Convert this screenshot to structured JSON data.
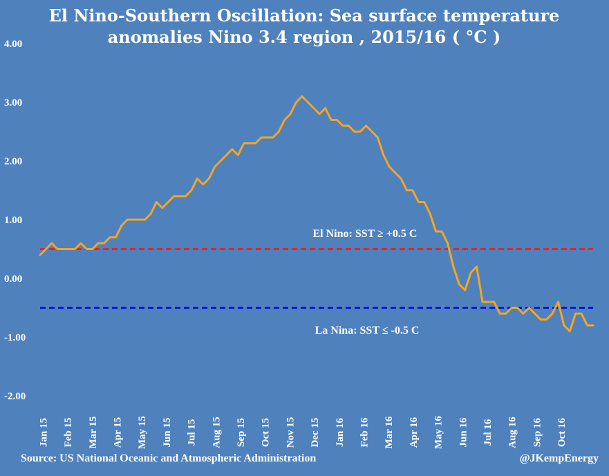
{
  "chart_data": {
    "type": "line",
    "title_line1": "El Nino-Southern Oscillation: Sea surface temperature",
    "title_line2": "anomalies Nino 3.4 region , 2015/16 ( °C )",
    "ylim": [
      -2.0,
      4.0
    ],
    "y_ticks": [
      4.0,
      3.0,
      2.0,
      1.0,
      0.0,
      -1.0,
      -2.0
    ],
    "y_tick_labels": [
      "4.00",
      "3.00",
      "2.00",
      "1.00",
      "0.00",
      "-1.00",
      "-2.00"
    ],
    "x_tick_labels": [
      "Jan 15",
      "Feb 15",
      "Mar 15",
      "Apr 15",
      "May 15",
      "Jun 15",
      "Jul 15",
      "Aug 15",
      "Sep 15",
      "Oct 15",
      "Nov 15",
      "Dec 15",
      "Jan 16",
      "Feb 16",
      "Mar 16",
      "Apr 16",
      "May 16",
      "Jun 16",
      "Jul 16",
      "Aug 16",
      "Sep 16",
      "Oct 16"
    ],
    "series": [
      {
        "name": "Nino 3.4 SST anomaly",
        "color": "#f5a623",
        "values": [
          0.4,
          0.5,
          0.6,
          0.5,
          0.5,
          0.5,
          0.5,
          0.6,
          0.5,
          0.5,
          0.6,
          0.6,
          0.7,
          0.7,
          0.9,
          1.0,
          1.0,
          1.0,
          1.0,
          1.1,
          1.3,
          1.2,
          1.3,
          1.4,
          1.4,
          1.4,
          1.5,
          1.7,
          1.6,
          1.7,
          1.9,
          2.0,
          2.1,
          2.2,
          2.1,
          2.3,
          2.3,
          2.3,
          2.4,
          2.4,
          2.4,
          2.5,
          2.7,
          2.8,
          3.0,
          3.1,
          3.0,
          2.9,
          2.8,
          2.9,
          2.7,
          2.7,
          2.6,
          2.6,
          2.5,
          2.5,
          2.6,
          2.5,
          2.4,
          2.1,
          1.9,
          1.8,
          1.7,
          1.5,
          1.5,
          1.3,
          1.3,
          1.1,
          0.8,
          0.8,
          0.6,
          0.2,
          -0.1,
          -0.2,
          0.1,
          0.2,
          -0.4,
          -0.4,
          -0.4,
          -0.6,
          -0.6,
          -0.5,
          -0.5,
          -0.6,
          -0.5,
          -0.6,
          -0.7,
          -0.7,
          -0.6,
          -0.4,
          -0.8,
          -0.9,
          -0.6,
          -0.6,
          -0.8,
          -0.8
        ]
      }
    ],
    "thresholds": [
      {
        "name": "El Nino threshold",
        "value": 0.5,
        "color": "#e8231e",
        "label": "El Nino: SST ≥  +0.5 C"
      },
      {
        "name": "La Nina threshold",
        "value": -0.5,
        "color": "#0a18d6",
        "label": "La Nina:  SST ≤ -0.5 C"
      }
    ]
  },
  "footer": {
    "source": "Source: US National Oceanic and Atmospheric Administration",
    "handle": "@JKempEnergy"
  }
}
